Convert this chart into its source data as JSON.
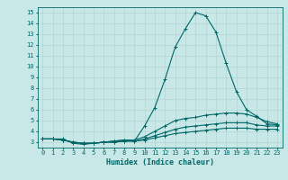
{
  "xlabel": "Humidex (Indice chaleur)",
  "ylabel": "",
  "background_color": "#c8e8e8",
  "grid_color": "#b0d0d0",
  "line_color": "#006666",
  "xlim": [
    -0.5,
    23.5
  ],
  "ylim": [
    2.5,
    15.5
  ],
  "xticks": [
    0,
    1,
    2,
    3,
    4,
    5,
    6,
    7,
    8,
    9,
    10,
    11,
    12,
    13,
    14,
    15,
    16,
    17,
    18,
    19,
    20,
    21,
    22,
    23
  ],
  "yticks": [
    3,
    4,
    5,
    6,
    7,
    8,
    9,
    10,
    11,
    12,
    13,
    14,
    15
  ],
  "curves": [
    {
      "x": [
        0,
        1,
        2,
        3,
        4,
        5,
        6,
        7,
        8,
        9,
        10,
        11,
        12,
        13,
        14,
        15,
        16,
        17,
        18,
        19,
        20,
        21,
        22,
        23
      ],
      "y": [
        3.3,
        3.3,
        3.3,
        2.9,
        2.8,
        2.9,
        3.0,
        3.1,
        3.2,
        3.1,
        4.5,
        6.2,
        8.8,
        11.8,
        13.5,
        15.0,
        14.7,
        13.2,
        10.3,
        7.7,
        6.0,
        5.4,
        4.7,
        4.6
      ]
    },
    {
      "x": [
        0,
        1,
        2,
        3,
        4,
        5,
        6,
        7,
        8,
        9,
        10,
        11,
        12,
        13,
        14,
        15,
        16,
        17,
        18,
        19,
        20,
        21,
        22,
        23
      ],
      "y": [
        3.3,
        3.3,
        3.2,
        3.0,
        2.9,
        2.9,
        3.0,
        3.1,
        3.2,
        3.2,
        3.5,
        4.0,
        4.5,
        5.0,
        5.2,
        5.3,
        5.5,
        5.6,
        5.7,
        5.7,
        5.6,
        5.3,
        4.9,
        4.7
      ]
    },
    {
      "x": [
        0,
        1,
        2,
        3,
        4,
        5,
        6,
        7,
        8,
        9,
        10,
        11,
        12,
        13,
        14,
        15,
        16,
        17,
        18,
        19,
        20,
        21,
        22,
        23
      ],
      "y": [
        3.3,
        3.3,
        3.2,
        3.0,
        2.9,
        2.9,
        3.0,
        3.0,
        3.1,
        3.1,
        3.3,
        3.6,
        3.9,
        4.2,
        4.4,
        4.5,
        4.6,
        4.7,
        4.8,
        4.8,
        4.8,
        4.6,
        4.5,
        4.5
      ]
    },
    {
      "x": [
        0,
        1,
        2,
        3,
        4,
        5,
        6,
        7,
        8,
        9,
        10,
        11,
        12,
        13,
        14,
        15,
        16,
        17,
        18,
        19,
        20,
        21,
        22,
        23
      ],
      "y": [
        3.3,
        3.3,
        3.2,
        3.0,
        2.9,
        2.9,
        3.0,
        3.0,
        3.1,
        3.1,
        3.2,
        3.4,
        3.6,
        3.8,
        3.9,
        4.0,
        4.1,
        4.2,
        4.3,
        4.3,
        4.3,
        4.2,
        4.2,
        4.2
      ]
    }
  ],
  "tick_labelsize": 5,
  "xlabel_fontsize": 6,
  "marker_size": 2.5,
  "linewidth": 0.8
}
